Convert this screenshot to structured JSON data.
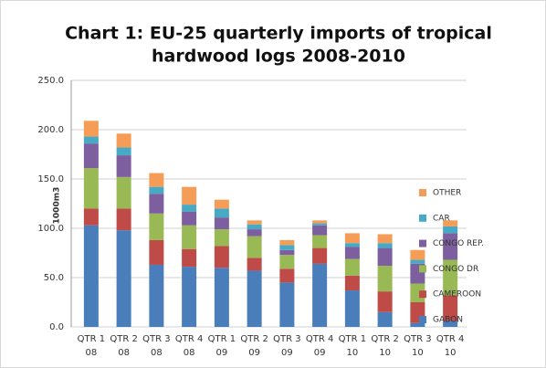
{
  "chart_data": {
    "type": "stacked_bar",
    "title": [
      "Chart 1: EU-25 quarterly imports of tropical",
      "hardwood logs 2008-2010"
    ],
    "y_label": "1000m3",
    "categories": [
      [
        "QTR 1",
        "08"
      ],
      [
        "QTR 2",
        "08"
      ],
      [
        "QTR 3",
        "08"
      ],
      [
        "QTR 4",
        "08"
      ],
      [
        "QTR 1",
        "09"
      ],
      [
        "QTR 2",
        "09"
      ],
      [
        "QTR 3",
        "09"
      ],
      [
        "QTR 4",
        "09"
      ],
      [
        "QTR 1",
        "10"
      ],
      [
        "QTR 2",
        "10"
      ],
      [
        "QTR 3",
        "10"
      ],
      [
        "QTR 4",
        "10"
      ]
    ],
    "series": [
      {
        "name": "GABON",
        "color": "#4a7ebb",
        "values": [
          103,
          98,
          63,
          61,
          60,
          57,
          45,
          64,
          37,
          15,
          4,
          6
        ]
      },
      {
        "name": "CAMEROON",
        "color": "#be4b48",
        "values": [
          17,
          22,
          25,
          18,
          22,
          13,
          14,
          16,
          15,
          21,
          21,
          26
        ]
      },
      {
        "name": "CONGO DR",
        "color": "#98b954",
        "values": [
          41,
          32,
          27,
          24,
          17,
          22,
          14,
          13,
          17,
          26,
          19,
          36
        ]
      },
      {
        "name": "CONGO REP.",
        "color": "#7d5fa0",
        "values": [
          25,
          22,
          20,
          14,
          12,
          7,
          5,
          10,
          12,
          18,
          20,
          27
        ]
      },
      {
        "name": "CAR",
        "color": "#46aac5",
        "values": [
          7,
          8,
          7,
          7,
          9,
          5,
          5,
          2,
          4,
          5,
          4,
          7
        ]
      },
      {
        "name": "OTHER",
        "color": "#f59d56",
        "values": [
          16,
          14,
          14,
          18,
          9,
          4,
          5,
          3,
          10,
          9,
          10,
          6
        ]
      }
    ],
    "ylim": [
      0,
      250
    ],
    "yticks": [
      {
        "value": 0,
        "label": "0.0"
      },
      {
        "value": 50,
        "label": "50.0"
      },
      {
        "value": 100,
        "label": "100.0"
      },
      {
        "value": 150,
        "label": "150.0"
      },
      {
        "value": 200,
        "label": "200.0"
      },
      {
        "value": 250,
        "label": "250.0"
      }
    ],
    "grid": true,
    "legend": "right"
  }
}
